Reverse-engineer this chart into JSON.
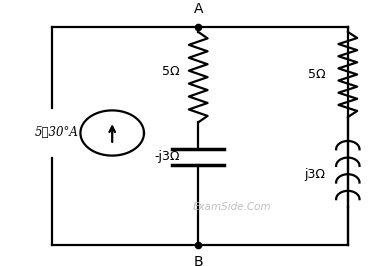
{
  "bg_color": "#ffffff",
  "line_color": "#000000",
  "text_color": "#000000",
  "watermark_color": "#c0c0c0",
  "watermark_text": "ExamSide.Com",
  "label_A": "A",
  "label_B": "B",
  "label_source": "5⌄30°A",
  "label_R1": "5Ω",
  "label_C1": "-j3Ω",
  "label_R2": "5Ω",
  "label_L1": "j3Ω",
  "fig_width": 3.74,
  "fig_height": 2.66,
  "dpi": 100
}
